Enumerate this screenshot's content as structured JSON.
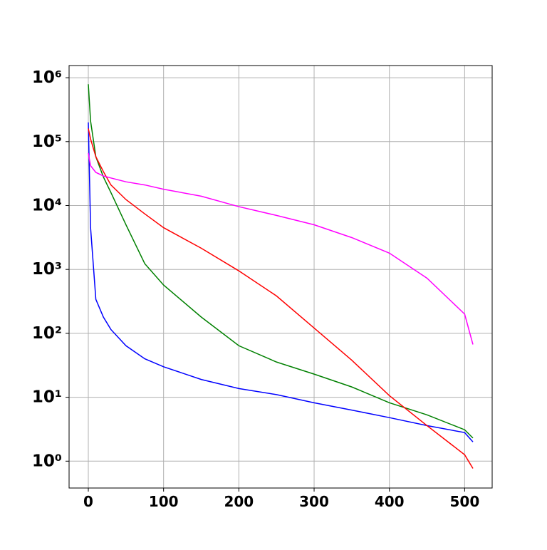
{
  "chart_data": {
    "type": "line",
    "x": [
      0,
      3,
      10,
      20,
      30,
      50,
      75,
      100,
      150,
      200,
      250,
      300,
      350,
      400,
      450,
      500,
      511
    ],
    "series": [
      {
        "color": "#0000ff",
        "values": [
          200000,
          4500,
          340,
          180,
          115,
          64,
          40,
          30,
          19,
          13.7,
          11,
          8.2,
          6.3,
          4.8,
          3.6,
          2.8,
          2.0
        ]
      },
      {
        "color": "#008000",
        "values": [
          790000,
          210000,
          58000,
          28000,
          16000,
          5000,
          1230,
          570,
          180,
          64,
          35.6,
          23,
          14.5,
          8.2,
          5.3,
          3.1,
          2.3
        ]
      },
      {
        "color": "#ff0000",
        "values": [
          160000,
          110000,
          58000,
          34000,
          21000,
          12400,
          7400,
          4500,
          2150,
          950,
          385,
          121,
          38,
          10.6,
          3.6,
          1.26,
          0.77
        ]
      },
      {
        "color": "#ff00ff",
        "values": [
          66000,
          42000,
          33000,
          29000,
          27000,
          23500,
          21000,
          18000,
          14000,
          9600,
          7000,
          5000,
          3150,
          1800,
          730,
          200,
          67
        ]
      }
    ],
    "xlim": [
      -25.55,
      536.55
    ],
    "xticks": [
      0,
      100,
      200,
      300,
      400,
      500
    ],
    "ylim": [
      0.38,
      1550000
    ],
    "ylog": true,
    "yticks": [
      {
        "value": 1,
        "label": "10⁰"
      },
      {
        "value": 10,
        "label": "10¹"
      },
      {
        "value": 100,
        "label": "10²"
      },
      {
        "value": 1000,
        "label": "10³"
      },
      {
        "value": 10000,
        "label": "10⁴"
      },
      {
        "value": 100000,
        "label": "10⁵"
      },
      {
        "value": 1000000,
        "label": "10⁶"
      }
    ],
    "grid": true
  }
}
